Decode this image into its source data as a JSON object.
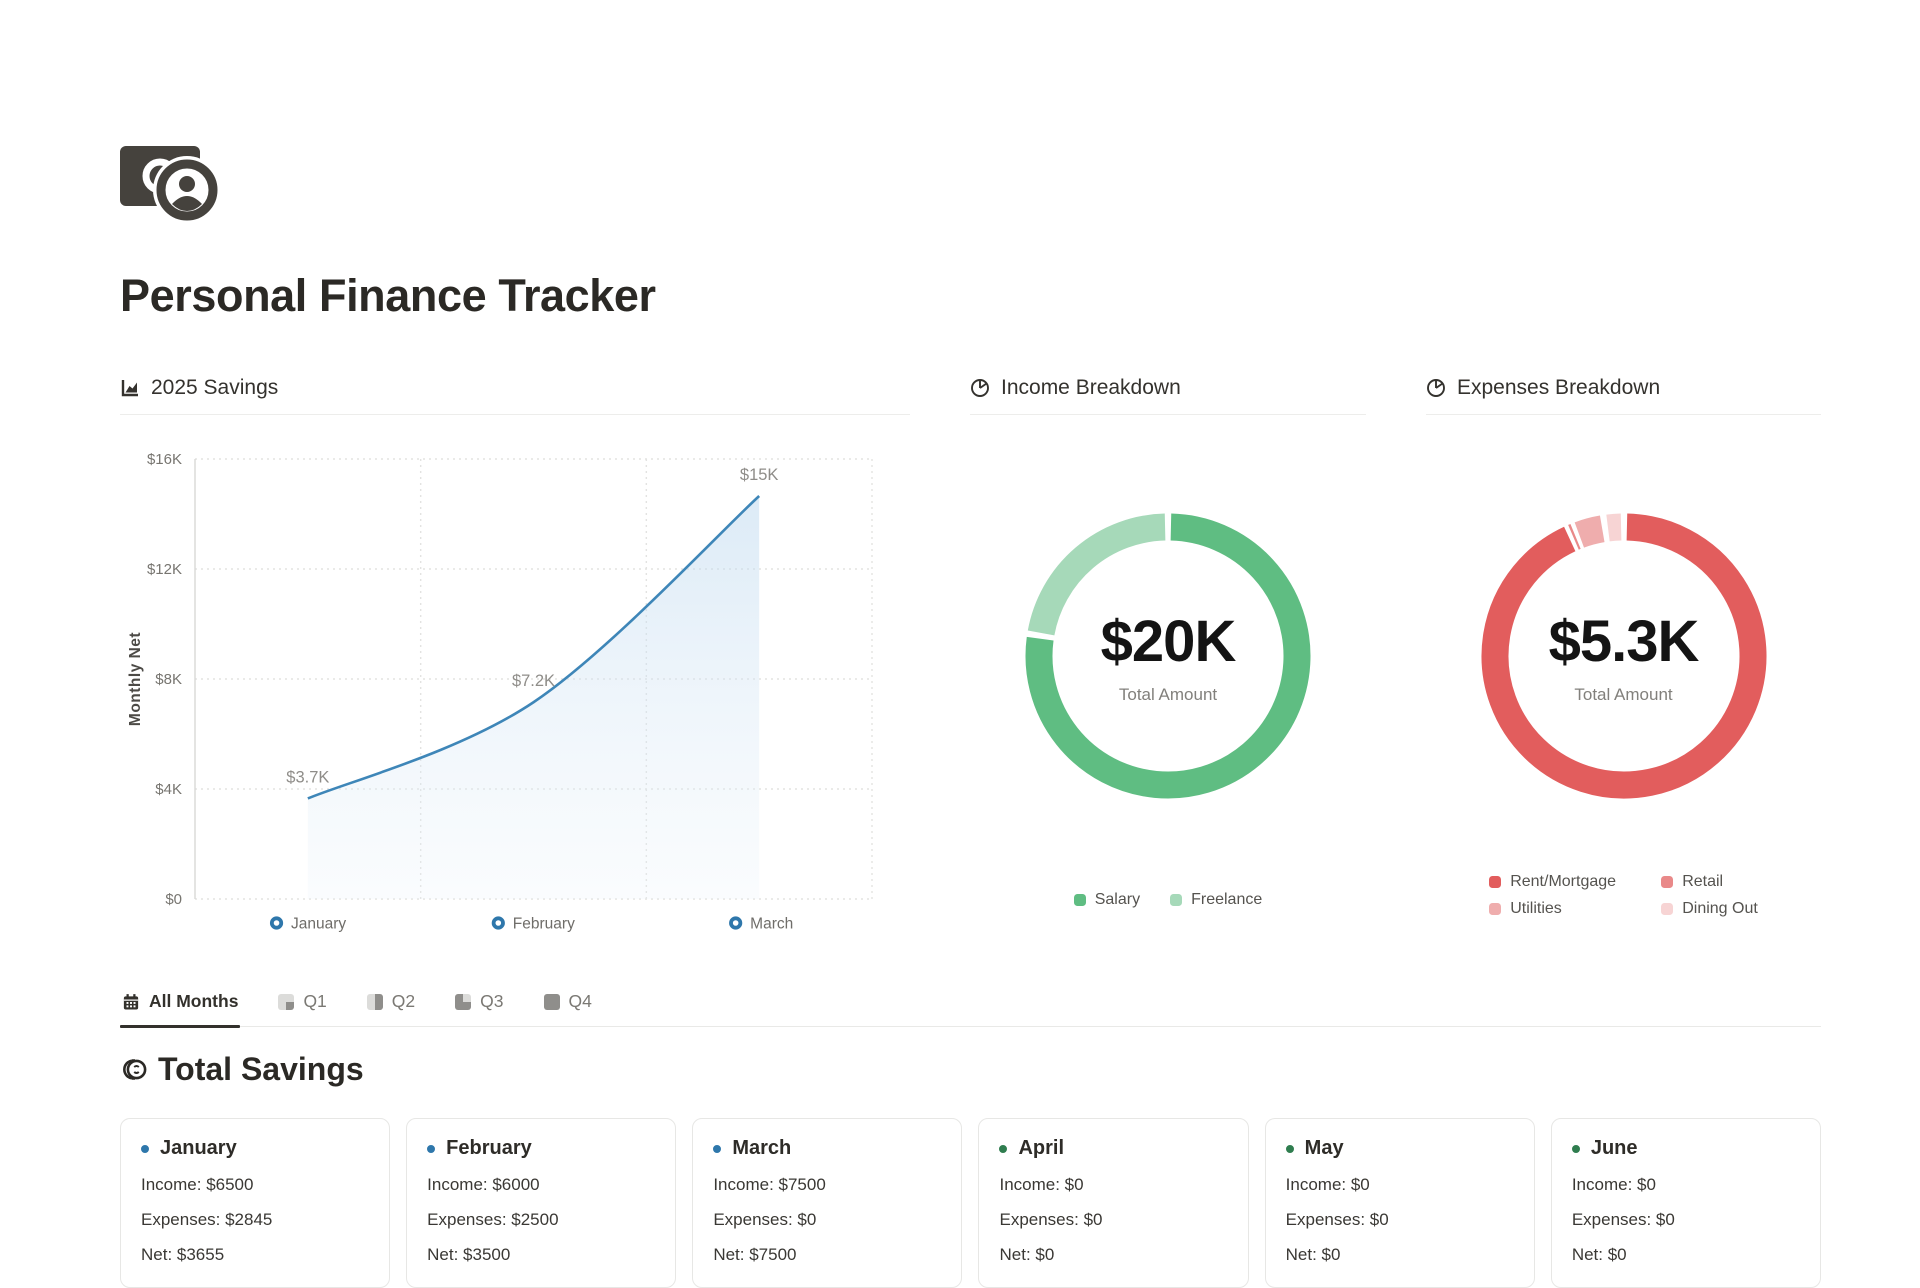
{
  "header": {
    "title": "Personal Finance Tracker"
  },
  "sections": {
    "savings": {
      "title": "2025 Savings"
    },
    "income": {
      "title": "Income Breakdown"
    },
    "expenses": {
      "title": "Expenses Breakdown"
    }
  },
  "chart_data": [
    {
      "type": "line",
      "title": "2025 Savings",
      "x": [
        "January",
        "February",
        "March"
      ],
      "values": [
        3655,
        7155,
        14655
      ],
      "point_labels": [
        "$3.7K",
        "$7.2K",
        "$15K"
      ],
      "ylabel": "Monthly Net",
      "xlabel": "",
      "ylim": [
        0,
        16000
      ],
      "yticks": [
        {
          "value": 0,
          "label": "$0"
        },
        {
          "value": 4000,
          "label": "$4K"
        },
        {
          "value": 8000,
          "label": "$8K"
        },
        {
          "value": 12000,
          "label": "$12K"
        },
        {
          "value": 16000,
          "label": "$16K"
        }
      ],
      "grid": true,
      "area_fill": true,
      "line_color": "#3e86b8",
      "marker_color": "#2e77ab"
    },
    {
      "type": "pie",
      "subtype": "donut",
      "title": "Income Breakdown",
      "center_value": "$20K",
      "center_label": "Total Amount",
      "legend_position": "bottom",
      "legend_layout": "row",
      "segments": [
        {
          "label": "Salary",
          "value": 15500,
          "color": "#5fbd82"
        },
        {
          "label": "Freelance",
          "value": 4500,
          "color": "#a6d9b9"
        }
      ]
    },
    {
      "type": "pie",
      "subtype": "donut",
      "title": "Expenses Breakdown",
      "center_value": "$5.3K",
      "center_label": "Total Amount",
      "legend_position": "bottom",
      "legend_layout": "grid",
      "segments": [
        {
          "label": "Rent/Mortgage",
          "value": 4995,
          "color": "#e25d5d"
        },
        {
          "label": "Retail",
          "value": 30,
          "color": "#e98989"
        },
        {
          "label": "Utilities",
          "value": 195,
          "color": "#efadad"
        },
        {
          "label": "Dining Out",
          "value": 125,
          "color": "#f7d4d4"
        }
      ]
    }
  ],
  "tabs": [
    {
      "label": "All Months",
      "icon": "calendar-icon",
      "active": true
    },
    {
      "label": "Q1",
      "icon": "quarter-1-icon",
      "active": false
    },
    {
      "label": "Q2",
      "icon": "quarter-2-icon",
      "active": false
    },
    {
      "label": "Q3",
      "icon": "quarter-3-icon",
      "active": false
    },
    {
      "label": "Q4",
      "icon": "quarter-4-icon",
      "active": false
    }
  ],
  "total_savings": {
    "title": "Total Savings",
    "cards": [
      {
        "month": "January",
        "dot_color": "#2e77ab",
        "income": "Income: $6500",
        "expenses": "Expenses: $2845",
        "net": "Net: $3655"
      },
      {
        "month": "February",
        "dot_color": "#2e77ab",
        "income": "Income: $6000",
        "expenses": "Expenses: $2500",
        "net": "Net: $3500"
      },
      {
        "month": "March",
        "dot_color": "#2e77ab",
        "income": "Income: $7500",
        "expenses": "Expenses: $0",
        "net": "Net: $7500"
      },
      {
        "month": "April",
        "dot_color": "#2f7d4f",
        "income": "Income: $0",
        "expenses": "Expenses: $0",
        "net": "Net: $0"
      },
      {
        "month": "May",
        "dot_color": "#2f7d4f",
        "income": "Income: $0",
        "expenses": "Expenses: $0",
        "net": "Net: $0"
      },
      {
        "month": "June",
        "dot_color": "#2f7d4f",
        "income": "Income: $0",
        "expenses": "Expenses: $0",
        "net": "Net: $0"
      }
    ]
  }
}
